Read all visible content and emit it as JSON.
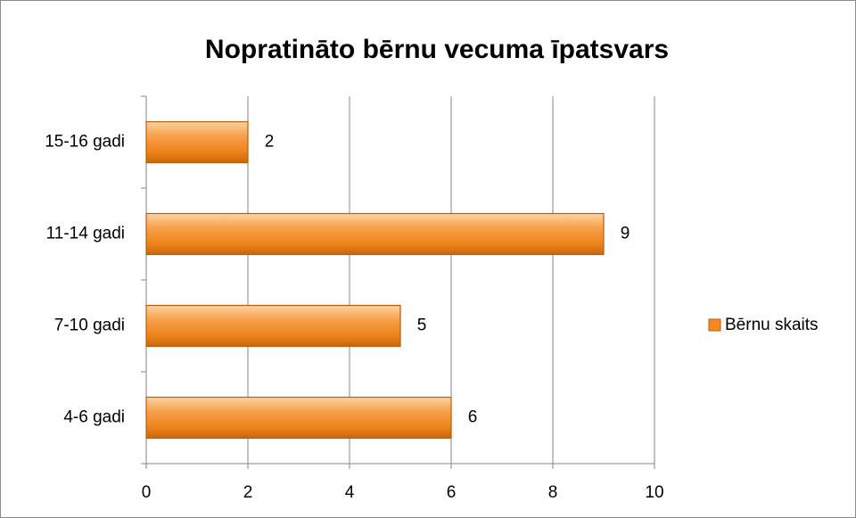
{
  "chart_data": {
    "type": "bar",
    "orientation": "horizontal",
    "title": "Nopratināto bērnu vecuma īpatsvars",
    "categories": [
      "4-6 gadi",
      "7-10 gadi",
      "11-14 gadi",
      "15-16 gadi"
    ],
    "series": [
      {
        "name": "Bērnu skaits",
        "color": "#f38a1f",
        "values": [
          6,
          5,
          9,
          2
        ]
      }
    ],
    "xlim": [
      0,
      10
    ],
    "xticks": [
      0,
      2,
      4,
      6,
      8,
      10
    ],
    "grid": true,
    "legend": "right"
  }
}
